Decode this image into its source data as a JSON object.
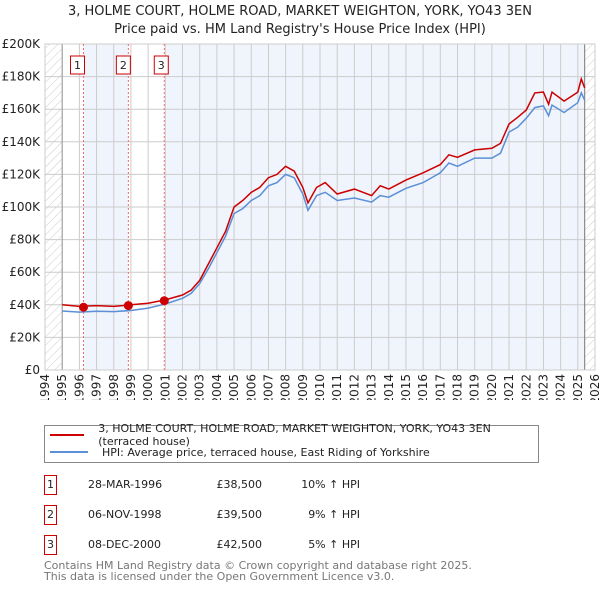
{
  "chart_data": {
    "type": "line",
    "title": "3, HOLME COURT, HOLME ROAD, MARKET WEIGHTON, YORK, YO43 3EN",
    "subtitle": "Price paid vs. HM Land Registry's House Price Index (HPI)",
    "xlim": [
      1994,
      2026
    ],
    "ylim": [
      0,
      200000
    ],
    "x_ticks": [
      "1994",
      "1995",
      "1996",
      "1997",
      "1998",
      "1999",
      "2000",
      "2001",
      "2002",
      "2003",
      "2004",
      "2005",
      "2006",
      "2007",
      "2008",
      "2009",
      "2010",
      "2011",
      "2012",
      "2013",
      "2014",
      "2015",
      "2016",
      "2017",
      "2018",
      "2019",
      "2020",
      "2021",
      "2022",
      "2023",
      "2024",
      "2025",
      "2026"
    ],
    "y_ticks": [
      {
        "v": 0,
        "label": "£0"
      },
      {
        "v": 20000,
        "label": "£20K"
      },
      {
        "v": 40000,
        "label": "£40K"
      },
      {
        "v": 60000,
        "label": "£60K"
      },
      {
        "v": 80000,
        "label": "£80K"
      },
      {
        "v": 100000,
        "label": "£100K"
      },
      {
        "v": 120000,
        "label": "£120K"
      },
      {
        "v": 140000,
        "label": "£140K"
      },
      {
        "v": 160000,
        "label": "£160K"
      },
      {
        "v": 180000,
        "label": "£180K"
      },
      {
        "v": 200000,
        "label": "£200K"
      }
    ],
    "grid": true,
    "data_range": [
      1995,
      2025.4
    ],
    "series": [
      {
        "name": "3, HOLME COURT, HOLME ROAD, MARKET WEIGHTON, YORK, YO43 3EN (terraced house)",
        "color": "#cc0000",
        "x": [
          1995,
          1996,
          1997,
          1998,
          1999,
          2000,
          2001,
          2002,
          2002.5,
          2003,
          2003.5,
          2004,
          2004.5,
          2005,
          2005.5,
          2006,
          2006.5,
          2007,
          2007.5,
          2008,
          2008.5,
          2009,
          2009.3,
          2009.8,
          2010.3,
          2011,
          2012,
          2013,
          2013.5,
          2014,
          2015,
          2016,
          2017,
          2017.5,
          2018,
          2019,
          2020,
          2020.5,
          2021,
          2021.5,
          2022,
          2022.5,
          2023,
          2023.3,
          2023.5,
          2024.2,
          2025,
          2025.2,
          2025.4
        ],
        "y": [
          40000,
          39000,
          39500,
          39000,
          40000,
          41000,
          43000,
          46000,
          49000,
          55000,
          65000,
          75000,
          85000,
          100000,
          104000,
          109000,
          112000,
          118000,
          120000,
          125000,
          122000,
          112000,
          102500,
          112000,
          115000,
          108000,
          111000,
          107000,
          113000,
          111000,
          116500,
          121000,
          126000,
          132000,
          130500,
          135000,
          136000,
          139000,
          151000,
          155000,
          159500,
          170000,
          170500,
          163000,
          170500,
          165000,
          170500,
          178500,
          173000
        ]
      },
      {
        "name": "HPI: Average price, terraced house, East Riding of Yorkshire",
        "color": "#5b8fd6",
        "x": [
          1995,
          1996,
          1997,
          1998,
          1999,
          2000,
          2001,
          2002,
          2002.5,
          2003,
          2003.5,
          2004,
          2004.5,
          2005,
          2005.5,
          2006,
          2006.5,
          2007,
          2007.5,
          2008,
          2008.5,
          2009,
          2009.3,
          2009.8,
          2010.3,
          2011,
          2012,
          2013,
          2013.5,
          2014,
          2015,
          2016,
          2017,
          2017.5,
          2018,
          2019,
          2020,
          2020.5,
          2021,
          2021.5,
          2022,
          2022.5,
          2023,
          2023.3,
          2023.5,
          2024.2,
          2025,
          2025.2,
          2025.4
        ],
        "y": [
          36200,
          35500,
          36000,
          35800,
          36500,
          38000,
          40500,
          44000,
          47000,
          53000,
          62000,
          72000,
          82000,
          96000,
          99000,
          104000,
          107000,
          113000,
          115000,
          120000,
          118000,
          108000,
          98000,
          107000,
          109000,
          104000,
          105500,
          103000,
          107000,
          106000,
          111500,
          115000,
          121000,
          127000,
          125000,
          130000,
          130000,
          133000,
          146000,
          149000,
          154500,
          161000,
          162000,
          156000,
          162500,
          158000,
          164000,
          170000,
          165500
        ]
      }
    ],
    "sales": [
      {
        "id": "1",
        "x": 1996.24,
        "y": 38500
      },
      {
        "id": "2",
        "x": 1998.85,
        "y": 39500
      },
      {
        "id": "3",
        "x": 2000.94,
        "y": 42500
      }
    ]
  },
  "legend": {
    "property": "3, HOLME COURT, HOLME ROAD, MARKET WEIGHTON, YORK, YO43 3EN (terraced house)",
    "hpi": "HPI: Average price, terraced house, East Riding of Yorkshire"
  },
  "transactions": [
    {
      "num": "1",
      "date": "28-MAR-1996",
      "price": "£38,500",
      "pct": "10% ↑ HPI"
    },
    {
      "num": "2",
      "date": "06-NOV-1998",
      "price": "£39,500",
      "pct": "9% ↑ HPI"
    },
    {
      "num": "3",
      "date": "08-DEC-2000",
      "price": "£42,500",
      "pct": "5% ↑ HPI"
    }
  ],
  "footer": {
    "line1": "Contains HM Land Registry data © Crown copyright and database right 2025.",
    "line2": "This data is licensed under the Open Government Licence v3.0."
  }
}
